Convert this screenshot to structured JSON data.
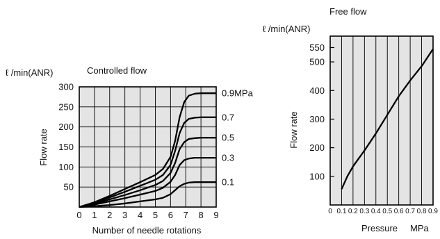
{
  "chart_data": [
    {
      "type": "line",
      "title": "Controlled flow",
      "unit_label": "ℓ /min(ANR)",
      "ylabel": "Flow rate",
      "xlabel": "Number of needle rotations",
      "xlim": [
        0,
        9
      ],
      "ylim": [
        0,
        300
      ],
      "xticks": [
        "0",
        "1",
        "2",
        "3",
        "4",
        "5",
        "6",
        "7",
        "8",
        "9"
      ],
      "yticks": [
        "50",
        "100",
        "150",
        "200",
        "250",
        "300"
      ],
      "grid": true,
      "series": [
        {
          "name": "0.9MPa",
          "x": [
            0,
            1,
            2,
            3,
            4,
            5,
            5.5,
            6,
            6.3,
            6.6,
            6.9,
            7.2,
            7.6,
            8,
            9
          ],
          "y": [
            0,
            12,
            28,
            45,
            62,
            80,
            95,
            125,
            165,
            225,
            262,
            278,
            283,
            284,
            284
          ]
        },
        {
          "name": "0.7",
          "x": [
            0,
            1,
            2,
            3,
            4,
            5,
            5.5,
            6,
            6.3,
            6.6,
            6.9,
            7.2,
            7.6,
            8,
            9
          ],
          "y": [
            0,
            10,
            24,
            38,
            53,
            68,
            80,
            105,
            140,
            185,
            210,
            220,
            223,
            224,
            224
          ]
        },
        {
          "name": "0.5",
          "x": [
            0,
            1,
            2,
            3,
            4,
            5,
            5.5,
            6,
            6.3,
            6.6,
            6.9,
            7.2,
            7.6,
            8,
            9
          ],
          "y": [
            0,
            8,
            19,
            30,
            42,
            55,
            65,
            85,
            110,
            145,
            162,
            170,
            172,
            173,
            173
          ]
        },
        {
          "name": "0.3",
          "x": [
            0,
            1,
            2,
            3,
            4,
            5,
            5.5,
            6,
            6.3,
            6.6,
            6.9,
            7.2,
            7.6,
            8,
            9
          ],
          "y": [
            0,
            6,
            14,
            22,
            31,
            40,
            48,
            63,
            80,
            105,
            117,
            121,
            123,
            123,
            123
          ]
        },
        {
          "name": "0.1",
          "x": [
            0,
            1,
            2,
            3,
            4,
            5,
            5.5,
            6,
            6.3,
            6.6,
            6.9,
            7.2,
            7.6,
            8,
            9
          ],
          "y": [
            0,
            2,
            5,
            9,
            14,
            19,
            23,
            32,
            42,
            52,
            58,
            61,
            62,
            62,
            62
          ]
        }
      ]
    },
    {
      "type": "line",
      "title": "Free flow",
      "unit_label": "ℓ /min(ANR)",
      "ylabel": "Flow rate",
      "xlabel": "Pressure",
      "xunit": "MPa",
      "xlim": [
        0,
        0.9
      ],
      "ylim": [
        0,
        590
      ],
      "xticks": [
        "0",
        "0.1",
        "0.2",
        "0.3",
        "0.4",
        "0.5",
        "0.6",
        "0.7",
        "0.8",
        "0.9"
      ],
      "yticks": [
        "100",
        "200",
        "300",
        "400",
        "500",
        "550"
      ],
      "grid": true,
      "series": [
        {
          "x": [
            0.1,
            0.15,
            0.2,
            0.3,
            0.4,
            0.5,
            0.6,
            0.7,
            0.8,
            0.9
          ],
          "y": [
            55,
            100,
            135,
            190,
            250,
            315,
            380,
            435,
            485,
            545
          ]
        }
      ]
    }
  ]
}
